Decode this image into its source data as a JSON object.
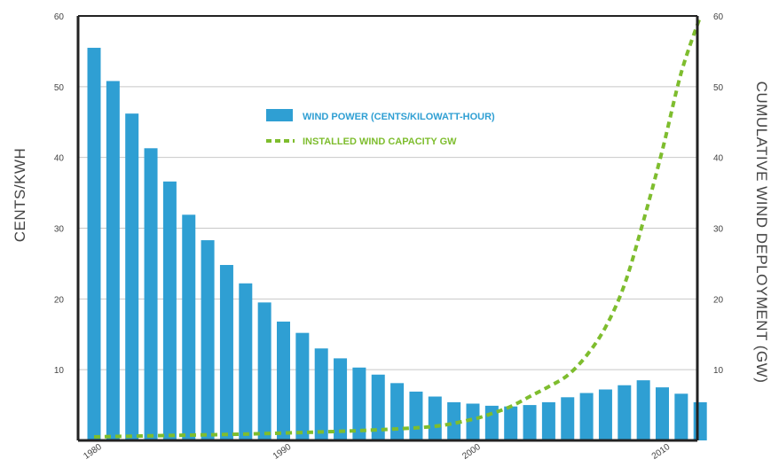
{
  "chart_data": {
    "type": "bar",
    "colors": {
      "bars": "#2f9fd3",
      "line": "#7ebd2e",
      "axis": "#222222",
      "grid": "#c8c8c8"
    },
    "y_left": {
      "label": "CENTS/KWH",
      "ylim": [
        0,
        60
      ],
      "ticks": [
        "10",
        "20",
        "30",
        "40",
        "50",
        "60"
      ]
    },
    "y_right": {
      "label": "CUMULATIVE WIND DEPLOYMENT (GW)",
      "ylim": [
        0,
        60
      ],
      "ticks": [
        "10",
        "20",
        "30",
        "40",
        "50",
        "60"
      ]
    },
    "x_ticks": [
      {
        "label": "1980",
        "year": 1980
      },
      {
        "label": "1990",
        "year": 1990
      },
      {
        "label": "2000",
        "year": 2000
      },
      {
        "label": "2010",
        "year": 2010
      }
    ],
    "grid": true,
    "legend_position": "top-center",
    "series": [
      {
        "name": "WIND POWER (CENTS/KILOWATT-HOUR)",
        "type": "bar",
        "axis": "left",
        "x": [
          1980,
          1981,
          1982,
          1983,
          1984,
          1985,
          1986,
          1987,
          1988,
          1989,
          1990,
          1991,
          1992,
          1993,
          1994,
          1995,
          1996,
          1997,
          1998,
          1999,
          2000,
          2001,
          2002,
          2003,
          2004,
          2005,
          2006,
          2007,
          2008,
          2009,
          2010,
          2011,
          2012
        ],
        "values": [
          55.5,
          50.8,
          46.2,
          41.3,
          36.6,
          31.9,
          28.3,
          24.8,
          22.2,
          19.5,
          16.8,
          15.2,
          13.0,
          11.6,
          10.3,
          9.3,
          8.1,
          6.9,
          6.2,
          5.4,
          5.2,
          4.9,
          4.8,
          5.0,
          5.4,
          6.1,
          6.7,
          7.2,
          7.8,
          8.5,
          7.5,
          6.6,
          5.4
        ]
      },
      {
        "name": "INSTALLED WIND CAPACITY GW",
        "type": "line",
        "axis": "right",
        "x": [
          1980,
          1984,
          1988,
          1992,
          1995,
          1998,
          2000,
          2001,
          2002,
          2003,
          2004,
          2005,
          2006,
          2007,
          2008,
          2009,
          2010,
          2011,
          2012
        ],
        "values": [
          0.5,
          0.7,
          0.9,
          1.2,
          1.5,
          2.0,
          3.0,
          3.8,
          4.8,
          6.2,
          7.6,
          9.2,
          12.0,
          16.0,
          22.0,
          31.0,
          41.0,
          52.0,
          61.0
        ]
      }
    ]
  }
}
